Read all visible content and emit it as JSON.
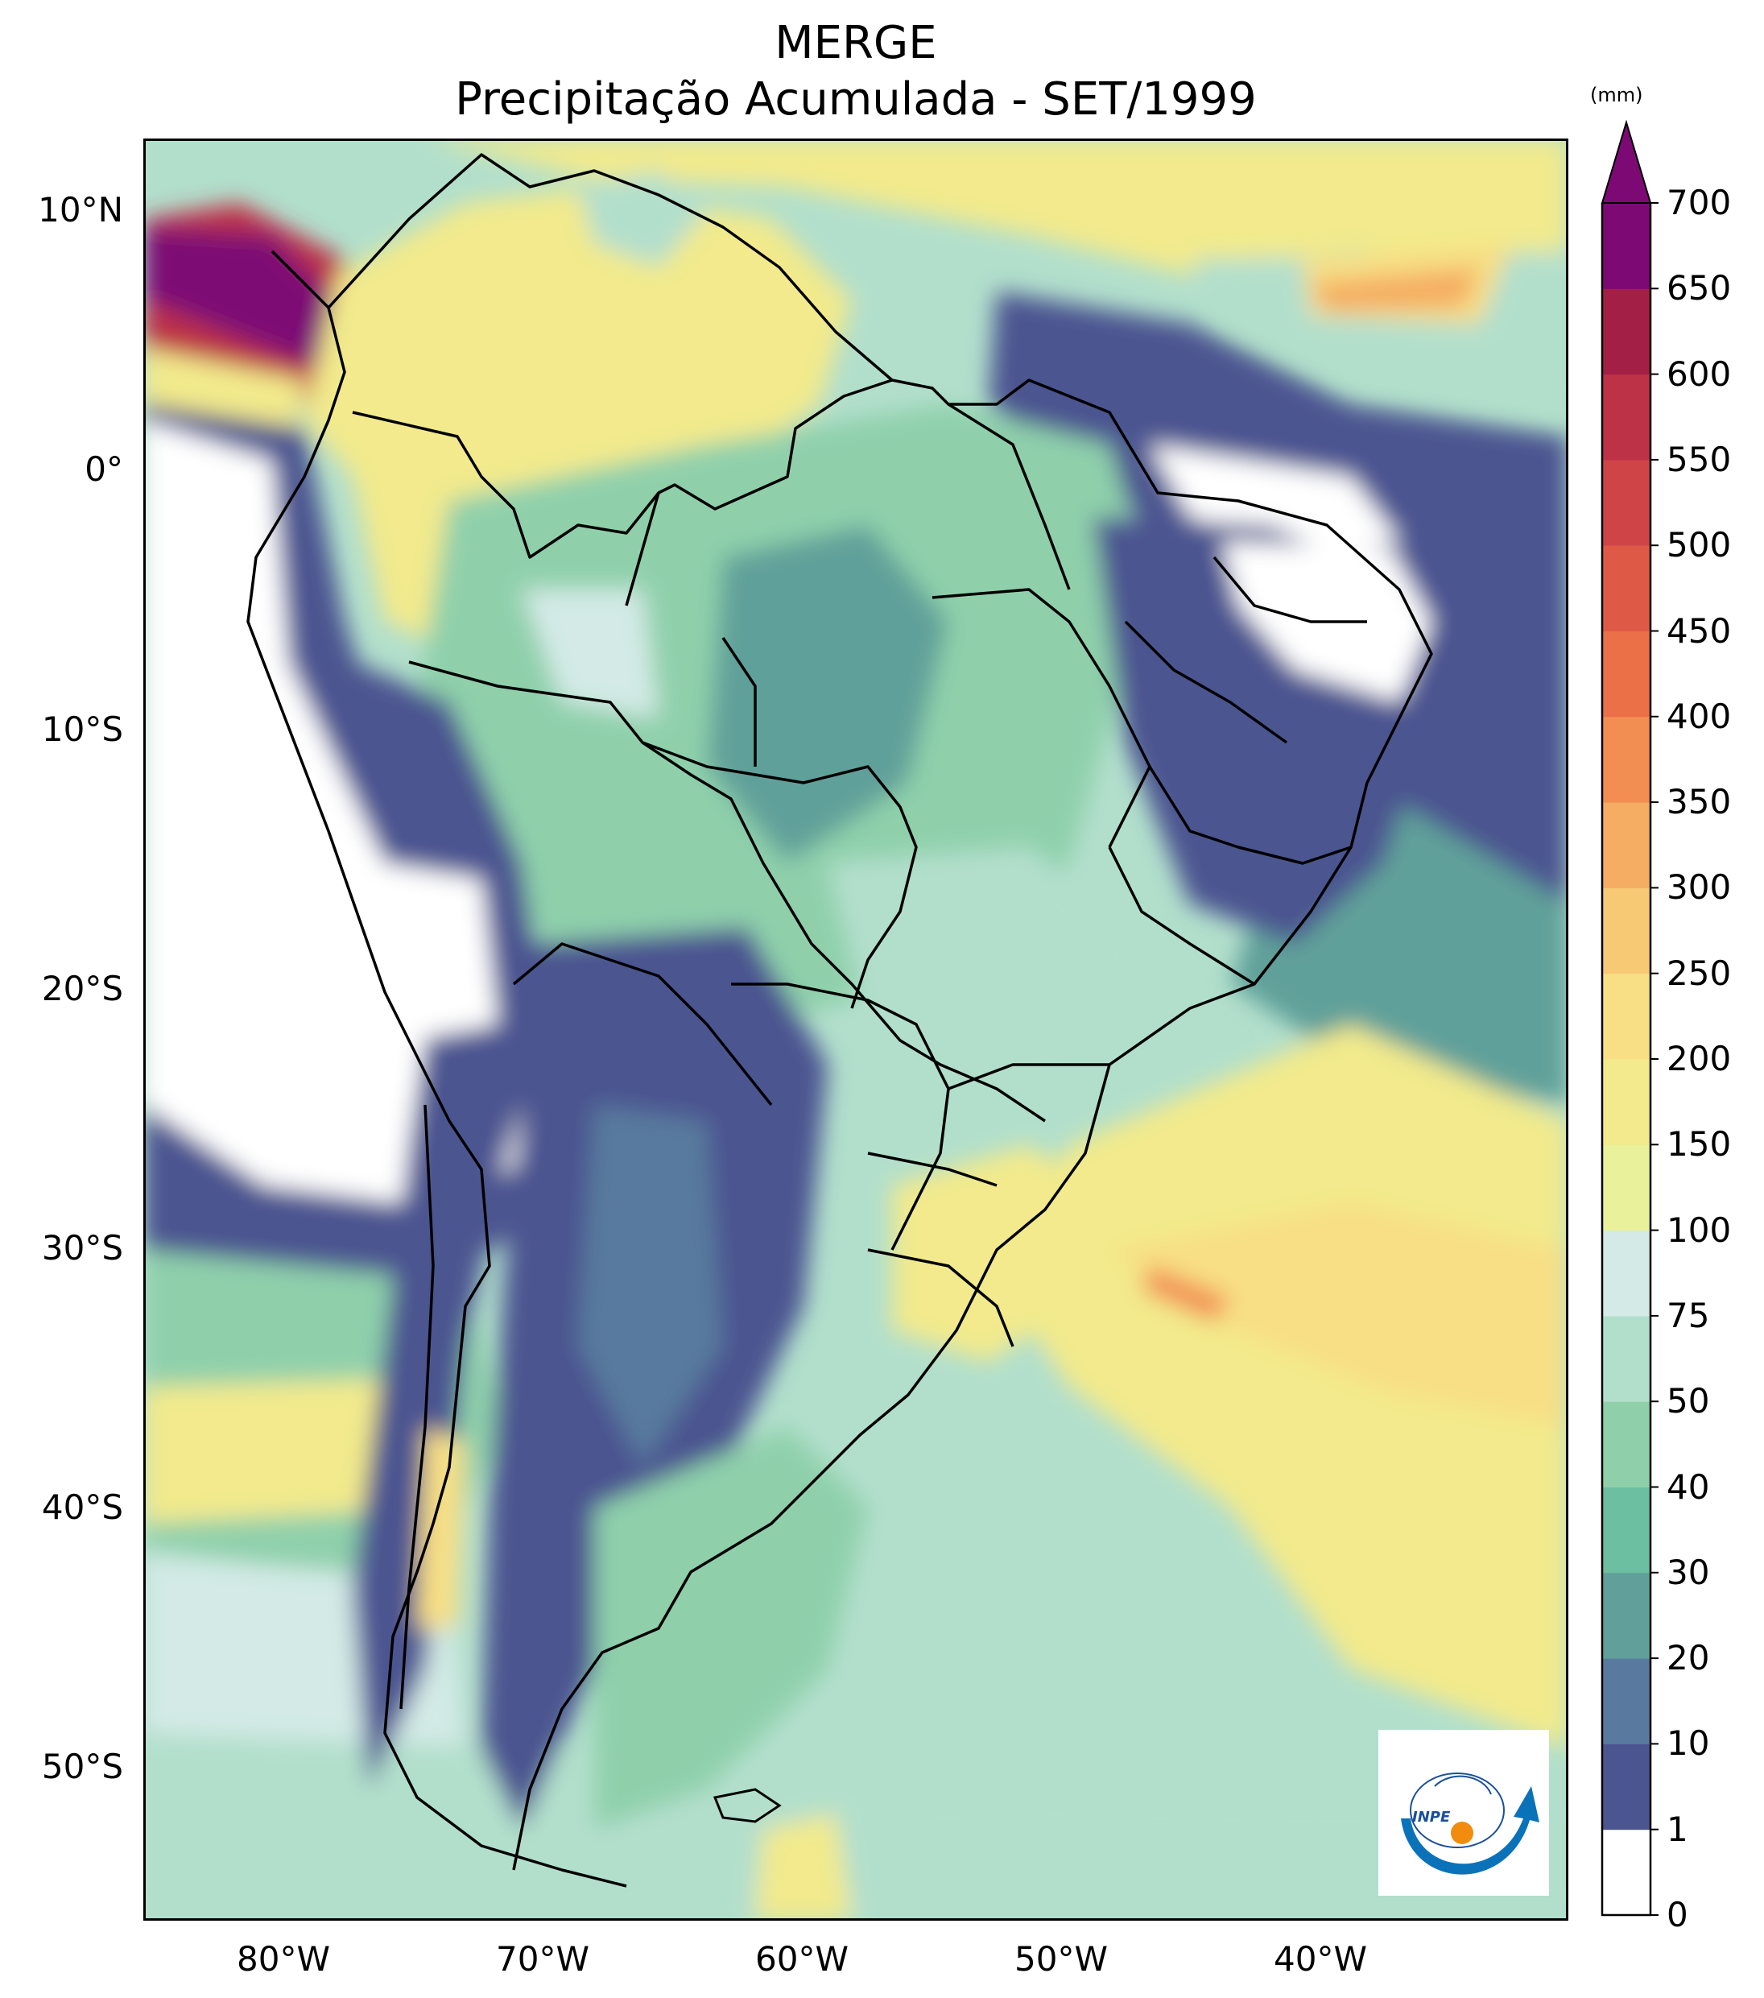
{
  "title": {
    "line1": "MERGE",
    "line2": "Precipitação Acumulada - SET/1999"
  },
  "latitude_labels": [
    "10°N",
    "0°",
    "10°S",
    "20°S",
    "30°S",
    "40°S",
    "50°S"
  ],
  "longitude_labels": [
    "80°W",
    "70°W",
    "60°W",
    "50°W",
    "40°W"
  ],
  "colorbar": {
    "unit": "(mm)",
    "ticks": [
      "0",
      "1",
      "10",
      "20",
      "30",
      "40",
      "50",
      "75",
      "100",
      "150",
      "200",
      "250",
      "300",
      "350",
      "400",
      "450",
      "500",
      "550",
      "600",
      "650",
      "700"
    ],
    "colors": [
      "#ffffff",
      "#4b5590",
      "#597a9e",
      "#61a09a",
      "#6cbfa0",
      "#8fd0ab",
      "#b2dfcc",
      "#d3eae6",
      "#e9f29a",
      "#f2ea8c",
      "#f8df85",
      "#f7c975",
      "#f4ad62",
      "#f28e51",
      "#eb7048",
      "#df5a46",
      "#cf4547",
      "#bd3247",
      "#a31f46",
      "#7d0a74"
    ]
  },
  "logo": {
    "text": "INPE"
  }
}
